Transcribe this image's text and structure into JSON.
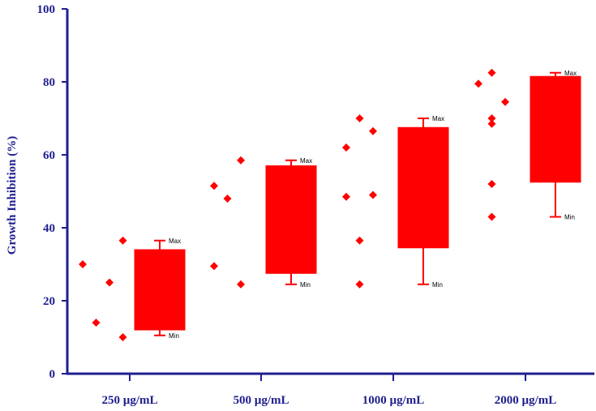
{
  "chart_data": {
    "type": "box",
    "title": "",
    "xlabel": "",
    "ylabel": "Growth Inhibition (%)",
    "ylim": [
      0,
      100
    ],
    "yticks": [
      0,
      20,
      40,
      60,
      80,
      100
    ],
    "grid": false,
    "legend": "none",
    "categories": [
      "250 µg/mL",
      "500 µg/mL",
      "1000 µg/mL",
      "2000 µg/mL"
    ],
    "boxes": [
      {
        "min": 10.5,
        "q1": 12,
        "q3": 34,
        "max": 36.5
      },
      {
        "min": 24.5,
        "q1": 27.5,
        "q3": 57,
        "max": 58.5
      },
      {
        "min": 24.5,
        "q1": 34.5,
        "q3": 67.5,
        "max": 70
      },
      {
        "min": 43,
        "q1": 52.5,
        "q3": 81.5,
        "max": 82.5
      }
    ],
    "points": [
      [
        {
          "offset": -2,
          "y": 30
        },
        {
          "offset": -1,
          "y": 14
        },
        {
          "offset": 0,
          "y": 25
        },
        {
          "offset": 1,
          "y": 10
        },
        {
          "offset": 1,
          "y": 36.5
        }
      ],
      [
        {
          "offset": -2,
          "y": 51.5
        },
        {
          "offset": -2,
          "y": 29.5
        },
        {
          "offset": -1,
          "y": 48
        },
        {
          "offset": 0,
          "y": 24.5
        },
        {
          "offset": 0,
          "y": 58.5
        }
      ],
      [
        {
          "offset": -2,
          "y": 62
        },
        {
          "offset": -2,
          "y": 48.5
        },
        {
          "offset": -1,
          "y": 36.5
        },
        {
          "offset": -1,
          "y": 24.5
        },
        {
          "offset": -1,
          "y": 70
        },
        {
          "offset": 0,
          "y": 66.5
        },
        {
          "offset": 0,
          "y": 49
        }
      ],
      [
        {
          "offset": -2,
          "y": 79.5
        },
        {
          "offset": -1,
          "y": 82.5
        },
        {
          "offset": -1,
          "y": 70
        },
        {
          "offset": -1,
          "y": 68.5
        },
        {
          "offset": -1,
          "y": 52
        },
        {
          "offset": -1,
          "y": 43
        },
        {
          "offset": 0,
          "y": 74.5
        }
      ]
    ],
    "whisker_labels": {
      "max": "Max",
      "min": "Min"
    },
    "colors": {
      "axis": "#1f1f8f",
      "box": "#ff0000",
      "points": "#ff0000",
      "text": "#1f1f8f"
    }
  }
}
